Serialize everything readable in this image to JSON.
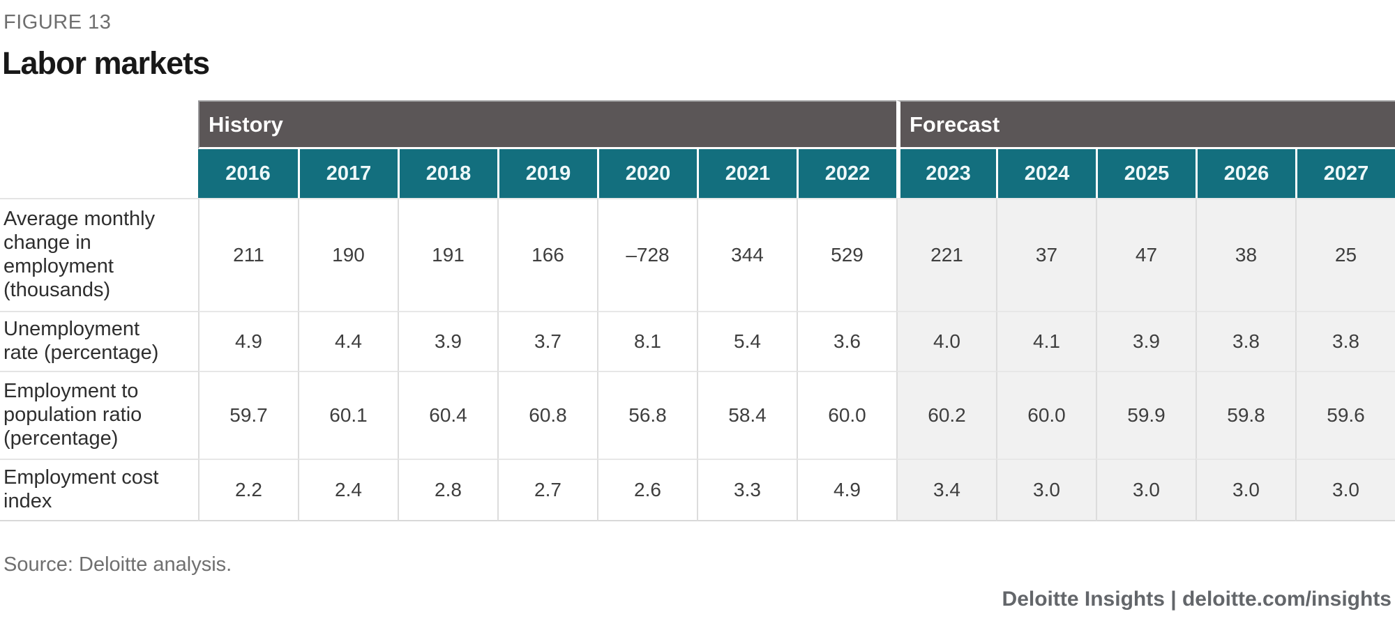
{
  "page": {
    "figure_label": "FIGURE 13",
    "title": "Labor markets",
    "source": "Source: Deloitte analysis.",
    "footer": "Deloitte Insights | deloitte.com/insights"
  },
  "colors": {
    "group_header_bg": "#5b5657",
    "year_header_bg": "#136f7e",
    "forecast_cell_bg": "#f1f1f1",
    "header_text": "#ffffff"
  },
  "table": {
    "groups": [
      {
        "label": "History",
        "span": 7
      },
      {
        "label": "Forecast",
        "span": 5
      }
    ],
    "years": [
      "2016",
      "2017",
      "2018",
      "2019",
      "2020",
      "2021",
      "2022",
      "2023",
      "2024",
      "2025",
      "2026",
      "2027"
    ],
    "history_columns": 7,
    "rows": [
      {
        "label": "Average monthly change in employment (thousands)",
        "values": [
          "211",
          "190",
          "191",
          "166",
          "–728",
          "344",
          "529",
          "221",
          "37",
          "47",
          "38",
          "25"
        ]
      },
      {
        "label": "Unemployment rate (percentage)",
        "values": [
          "4.9",
          "4.4",
          "3.9",
          "3.7",
          "8.1",
          "5.4",
          "3.6",
          "4.0",
          "4.1",
          "3.9",
          "3.8",
          "3.8"
        ]
      },
      {
        "label": "Employment to population ratio (percentage)",
        "values": [
          "59.7",
          "60.1",
          "60.4",
          "60.8",
          "56.8",
          "58.4",
          "60.0",
          "60.2",
          "60.0",
          "59.9",
          "59.8",
          "59.6"
        ]
      },
      {
        "label": "Employment cost index",
        "values": [
          "2.2",
          "2.4",
          "2.8",
          "2.7",
          "2.6",
          "3.3",
          "4.9",
          "3.4",
          "3.0",
          "3.0",
          "3.0",
          "3.0"
        ]
      }
    ]
  },
  "chart_data": {
    "type": "table",
    "title": "Labor markets",
    "categories": [
      2016,
      2017,
      2018,
      2019,
      2020,
      2021,
      2022,
      2023,
      2024,
      2025,
      2026,
      2027
    ],
    "groups": {
      "History": [
        2016,
        2022
      ],
      "Forecast": [
        2023,
        2027
      ]
    },
    "series": [
      {
        "name": "Average monthly change in employment (thousands)",
        "values": [
          211,
          190,
          191,
          166,
          -728,
          344,
          529,
          221,
          37,
          47,
          38,
          25
        ]
      },
      {
        "name": "Unemployment rate (percentage)",
        "values": [
          4.9,
          4.4,
          3.9,
          3.7,
          8.1,
          5.4,
          3.6,
          4.0,
          4.1,
          3.9,
          3.8,
          3.8
        ]
      },
      {
        "name": "Employment to population ratio (percentage)",
        "values": [
          59.7,
          60.1,
          60.4,
          60.8,
          56.8,
          58.4,
          60.0,
          60.2,
          60.0,
          59.9,
          59.8,
          59.6
        ]
      },
      {
        "name": "Employment cost index",
        "values": [
          2.2,
          2.4,
          2.8,
          2.7,
          2.6,
          3.3,
          4.9,
          3.4,
          3.0,
          3.0,
          3.0,
          3.0
        ]
      }
    ]
  }
}
